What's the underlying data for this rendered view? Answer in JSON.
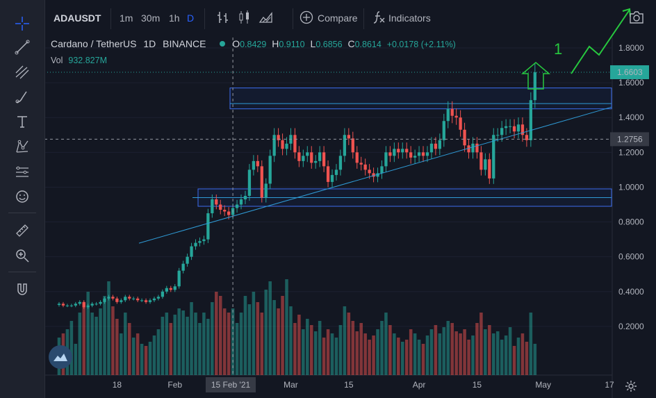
{
  "toolbar": {
    "symbol": "ADAUSDT",
    "intervals": [
      "1m",
      "30m",
      "1h",
      "D"
    ],
    "active_interval": "D",
    "compare_label": "Compare",
    "indicators_label": "Indicators"
  },
  "legend": {
    "pair": "Cardano / TetherUS",
    "interval": "1D",
    "exchange": "BINANCE",
    "o_label": "O",
    "o_value": "0.8429",
    "h_label": "H",
    "h_value": "0.9110",
    "l_label": "L",
    "l_value": "0.6856",
    "c_label": "C",
    "c_value": "0.8614",
    "change": "+0.0178 (+2.11%)",
    "vol_label": "Vol",
    "vol_value": "932.827M"
  },
  "colors": {
    "up": "#26a69a",
    "down": "#ef5350",
    "accent": "#2962ff",
    "drawing": "#3d6ef0",
    "trendline": "#2f9bd6",
    "annotation": "#27c93f"
  },
  "annotation": {
    "label": "1"
  },
  "chart_data": {
    "type": "candlestick",
    "title": "",
    "ylim": [
      0.0,
      2.0
    ],
    "y_ticks": [
      {
        "value": 1.8,
        "label": "1.8000"
      },
      {
        "value": 1.6,
        "label": "1.6000"
      },
      {
        "value": 1.4,
        "label": "1.4000"
      },
      {
        "value": 1.2,
        "label": "1.2000"
      },
      {
        "value": 1.0,
        "label": "1.0000"
      },
      {
        "value": 0.8,
        "label": "0.8000"
      },
      {
        "value": 0.6,
        "label": "0.6000"
      },
      {
        "value": 0.4,
        "label": "0.4000"
      },
      {
        "value": 0.2,
        "label": "0.2000"
      }
    ],
    "x_ticks": [
      {
        "date": "2021-01-18",
        "label": "18"
      },
      {
        "date": "2021-02-01",
        "label": "Feb"
      },
      {
        "date": "2021-03-01",
        "label": "Mar"
      },
      {
        "date": "2021-03-15",
        "label": "15"
      },
      {
        "date": "2021-04-01",
        "label": "Apr"
      },
      {
        "date": "2021-04-15",
        "label": "15"
      },
      {
        "date": "2021-05-01",
        "label": "May"
      },
      {
        "date": "2021-05-17",
        "label": "17"
      }
    ],
    "crosshair": {
      "date": "2021-02-15",
      "date_label": "15 Feb '21",
      "price": 1.2756,
      "price_label": "1.2756"
    },
    "last_price": {
      "value": 1.6603,
      "label": "1.6603"
    },
    "x_start": "2021-01-04",
    "x_end": "2021-05-17",
    "close": [
      0.33,
      0.32,
      0.32,
      0.32,
      0.33,
      0.34,
      0.31,
      0.32,
      0.33,
      0.33,
      0.34,
      0.36,
      0.37,
      0.36,
      0.34,
      0.35,
      0.37,
      0.36,
      0.36,
      0.35,
      0.35,
      0.34,
      0.35,
      0.36,
      0.37,
      0.4,
      0.42,
      0.41,
      0.43,
      0.52,
      0.56,
      0.6,
      0.66,
      0.68,
      0.69,
      0.7,
      0.85,
      0.93,
      0.9,
      0.87,
      0.86,
      0.84,
      0.88,
      0.9,
      0.93,
      0.95,
      1.1,
      1.15,
      1.12,
      0.94,
      1.02,
      1.18,
      1.3,
      1.27,
      1.22,
      1.25,
      1.3,
      1.2,
      1.15,
      1.18,
      1.2,
      1.14,
      1.15,
      1.2,
      1.12,
      1.03,
      1.07,
      1.1,
      1.18,
      1.3,
      1.28,
      1.2,
      1.14,
      1.13,
      1.1,
      1.08,
      1.06,
      1.08,
      1.12,
      1.2,
      1.18,
      1.22,
      1.2,
      1.22,
      1.2,
      1.17,
      1.18,
      1.2,
      1.18,
      1.2,
      1.25,
      1.22,
      1.27,
      1.38,
      1.45,
      1.41,
      1.4,
      1.33,
      1.24,
      1.2,
      1.25,
      1.2,
      1.1,
      1.16,
      1.05,
      1.3,
      1.3,
      1.34,
      1.35,
      1.35,
      1.32,
      1.36,
      1.3,
      1.27,
      1.5,
      1.66
    ],
    "volume": [
      0.18,
      0.2,
      0.22,
      0.26,
      0.15,
      0.3,
      0.35,
      0.4,
      0.3,
      0.28,
      0.32,
      0.38,
      0.45,
      0.33,
      0.27,
      0.2,
      0.3,
      0.25,
      0.18,
      0.2,
      0.15,
      0.14,
      0.16,
      0.19,
      0.22,
      0.28,
      0.3,
      0.25,
      0.29,
      0.32,
      0.31,
      0.28,
      0.35,
      0.3,
      0.25,
      0.3,
      0.27,
      0.35,
      0.4,
      0.38,
      0.32,
      0.3,
      0.32,
      0.25,
      0.3,
      0.38,
      0.34,
      0.4,
      0.35,
      0.3,
      0.41,
      0.45,
      0.36,
      0.32,
      0.38,
      0.46,
      0.33,
      0.25,
      0.29,
      0.22,
      0.27,
      0.24,
      0.21,
      0.26,
      0.18,
      0.22,
      0.2,
      0.18,
      0.24,
      0.33,
      0.3,
      0.26,
      0.21,
      0.25,
      0.2,
      0.17,
      0.19,
      0.22,
      0.26,
      0.3,
      0.24,
      0.2,
      0.18,
      0.16,
      0.17,
      0.22,
      0.2,
      0.17,
      0.15,
      0.19,
      0.22,
      0.24,
      0.2,
      0.23,
      0.26,
      0.25,
      0.21,
      0.2,
      0.22,
      0.17,
      0.19,
      0.25,
      0.3,
      0.22,
      0.24,
      0.2,
      0.21,
      0.17,
      0.19,
      0.23,
      0.14,
      0.18,
      0.2,
      0.16,
      0.3,
      0.15
    ],
    "horizontal_zones": [
      {
        "from": 1.45,
        "to": 1.57
      },
      {
        "from": 0.89,
        "to": 0.99
      }
    ],
    "horizontal_lines": [
      1.48,
      0.94
    ],
    "trendline": {
      "start_date": "2021-01-27",
      "start_price": 0.69,
      "end_date": "2021-05-17",
      "end_price": 1.46
    }
  }
}
